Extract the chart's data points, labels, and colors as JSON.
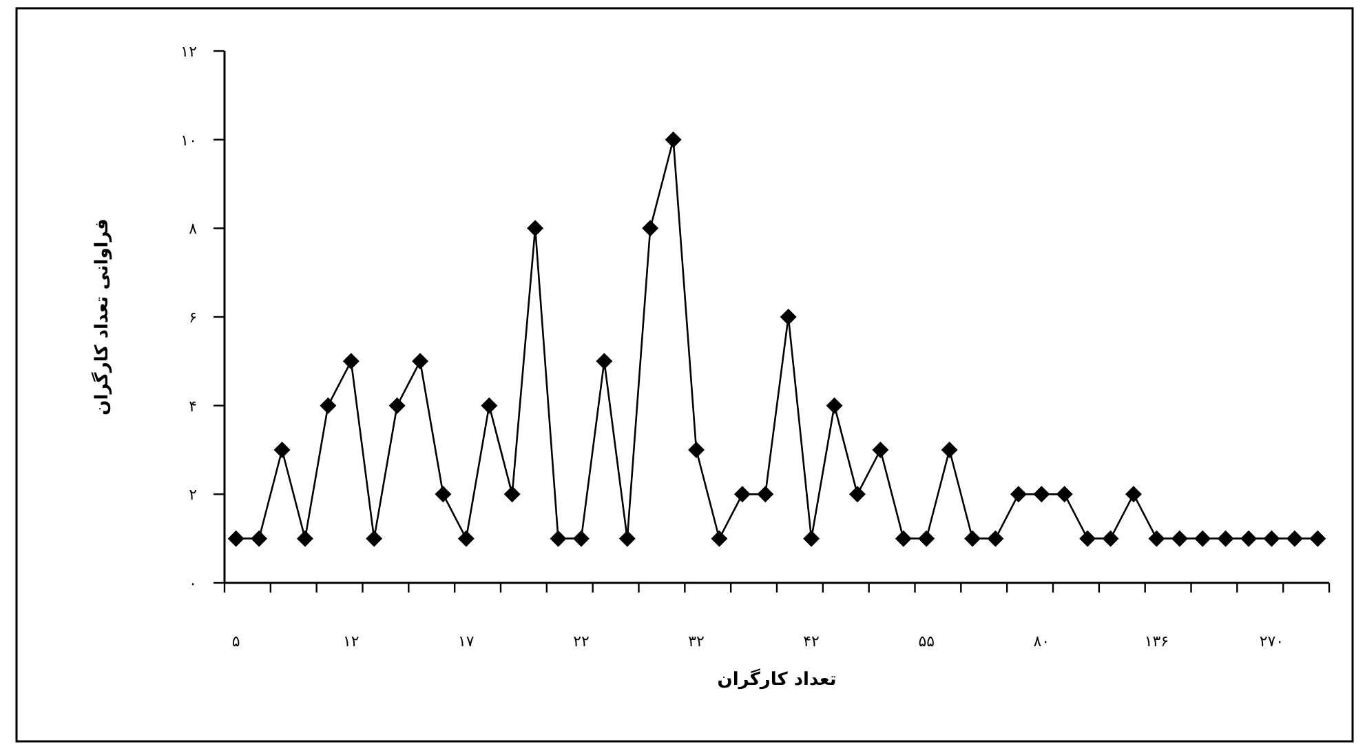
{
  "chart_data": {
    "type": "line",
    "xlabel": "تعداد کارگران",
    "ylabel": "فراوانی تعداد کارگران",
    "categories": [
      "۵",
      null,
      null,
      null,
      null,
      "۱۲",
      null,
      null,
      null,
      null,
      "۱۷",
      null,
      null,
      null,
      null,
      "۲۲",
      null,
      null,
      null,
      null,
      "۳۲",
      null,
      null,
      null,
      null,
      "۴۲",
      null,
      null,
      null,
      null,
      "۵۵",
      null,
      null,
      null,
      null,
      "۸۰",
      null,
      null,
      null,
      null,
      "۱۳۶",
      null,
      null,
      null,
      null,
      "۲۷۰",
      null,
      null
    ],
    "series": [
      {
        "color": "#000000",
        "values": [
          1,
          1,
          3,
          1,
          4,
          5,
          1,
          4,
          5,
          2,
          1,
          4,
          2,
          8,
          1,
          1,
          5,
          1,
          8,
          10,
          3,
          1,
          2,
          2,
          6,
          1,
          4,
          2,
          3,
          1,
          1,
          3,
          1,
          1,
          2,
          2,
          2,
          1,
          1,
          2,
          1,
          1,
          1,
          1,
          1,
          1,
          1,
          1
        ]
      }
    ],
    "ylim": [
      0,
      12
    ],
    "yticks": [
      {
        "value": 0,
        "label": "۰"
      },
      {
        "value": 2,
        "label": "۲"
      },
      {
        "value": 4,
        "label": "۴"
      },
      {
        "value": 6,
        "label": "۶"
      },
      {
        "value": 8,
        "label": "۸"
      },
      {
        "value": 10,
        "label": "۱۰"
      },
      {
        "value": 12,
        "label": "۱۲"
      }
    ],
    "marker": "diamond",
    "line_style": "solid"
  }
}
